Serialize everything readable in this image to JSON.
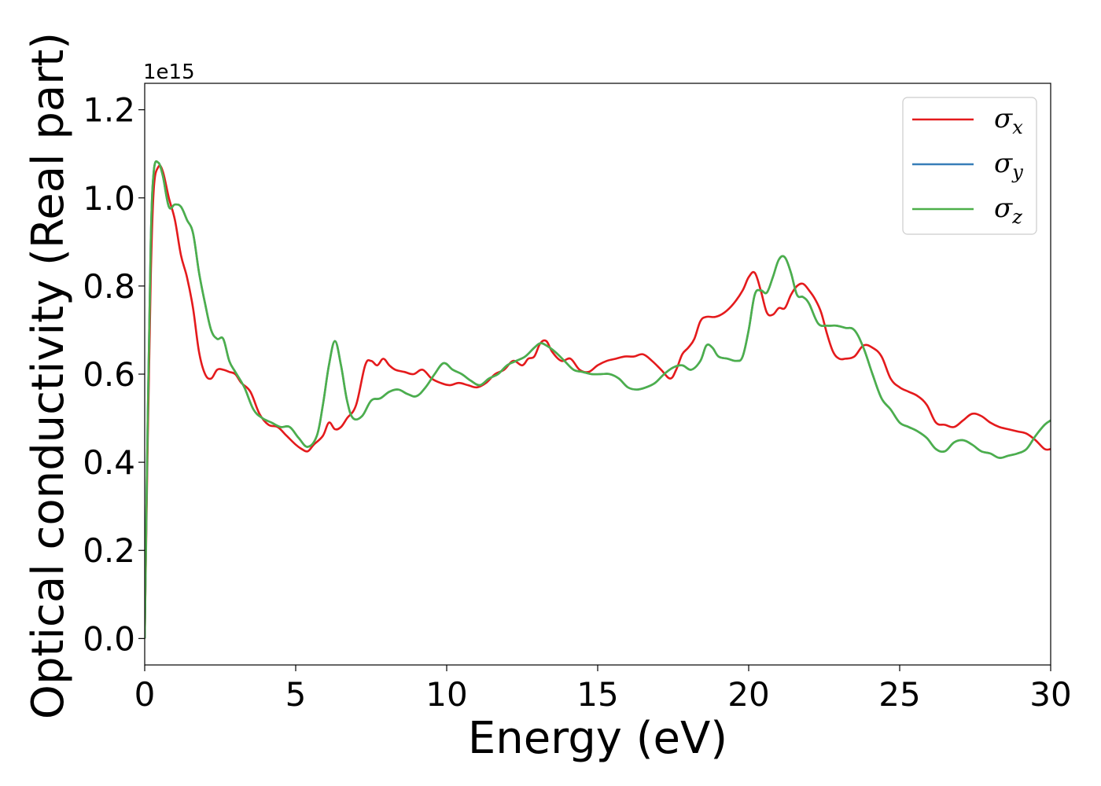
{
  "chart_data": {
    "type": "line",
    "xlabel": "Energy (eV)",
    "ylabel": "Optical conductivity (Real part)",
    "y_offset_label": "1e15",
    "xlim": [
      0,
      30
    ],
    "ylim": [
      -0.06,
      1.26
    ],
    "x_ticks": [
      0,
      5,
      10,
      15,
      20,
      25,
      30
    ],
    "x_tick_labels": [
      "0",
      "5",
      "10",
      "15",
      "20",
      "25",
      "30"
    ],
    "y_ticks": [
      0.0,
      0.2,
      0.4,
      0.6,
      0.8,
      1.0,
      1.2
    ],
    "y_tick_labels": [
      "0.0",
      "0.2",
      "0.4",
      "0.6",
      "0.8",
      "1.0",
      "1.2"
    ],
    "grid": false,
    "legend_position": "top-right",
    "series": [
      {
        "name": "σx",
        "symbol": "σ",
        "subscript": "x",
        "color": "#e41a1c",
        "x": [
          0,
          0.1,
          0.2,
          0.3,
          0.45,
          0.6,
          0.8,
          1.0,
          1.2,
          1.4,
          1.6,
          1.8,
          2.0,
          2.2,
          2.4,
          2.6,
          2.8,
          3.0,
          3.2,
          3.5,
          3.8,
          4.1,
          4.4,
          4.7,
          5.0,
          5.2,
          5.4,
          5.6,
          5.9,
          6.1,
          6.3,
          6.5,
          6.7,
          7.0,
          7.3,
          7.5,
          7.7,
          7.9,
          8.1,
          8.3,
          8.6,
          8.9,
          9.2,
          9.5,
          9.8,
          10.1,
          10.4,
          10.7,
          11.0,
          11.3,
          11.6,
          11.9,
          12.2,
          12.5,
          12.7,
          12.9,
          13.1,
          13.3,
          13.5,
          13.8,
          14.1,
          14.4,
          14.7,
          15.0,
          15.3,
          15.6,
          15.9,
          16.2,
          16.5,
          16.8,
          17.1,
          17.4,
          17.6,
          17.8,
          18.0,
          18.2,
          18.4,
          18.6,
          18.9,
          19.2,
          19.5,
          19.8,
          20.0,
          20.2,
          20.4,
          20.6,
          20.8,
          21.0,
          21.2,
          21.4,
          21.6,
          21.8,
          22.0,
          22.2,
          22.4,
          22.6,
          22.8,
          23.0,
          23.2,
          23.5,
          23.8,
          24.1,
          24.4,
          24.7,
          25.0,
          25.3,
          25.6,
          25.9,
          26.2,
          26.5,
          26.8,
          27.1,
          27.4,
          27.7,
          28.0,
          28.3,
          28.6,
          28.9,
          29.2,
          29.5,
          29.8,
          30.0
        ],
        "values": [
          0.0,
          0.45,
          0.82,
          1.02,
          1.07,
          1.06,
          1.0,
          0.95,
          0.87,
          0.82,
          0.75,
          0.65,
          0.6,
          0.59,
          0.61,
          0.61,
          0.605,
          0.6,
          0.58,
          0.56,
          0.51,
          0.485,
          0.48,
          0.46,
          0.44,
          0.43,
          0.425,
          0.44,
          0.46,
          0.49,
          0.475,
          0.48,
          0.5,
          0.53,
          0.62,
          0.63,
          0.62,
          0.635,
          0.62,
          0.61,
          0.605,
          0.6,
          0.61,
          0.59,
          0.58,
          0.575,
          0.58,
          0.575,
          0.57,
          0.58,
          0.6,
          0.61,
          0.63,
          0.62,
          0.635,
          0.64,
          0.67,
          0.675,
          0.65,
          0.63,
          0.635,
          0.61,
          0.605,
          0.62,
          0.63,
          0.635,
          0.64,
          0.64,
          0.645,
          0.63,
          0.61,
          0.59,
          0.61,
          0.645,
          0.66,
          0.68,
          0.72,
          0.73,
          0.73,
          0.74,
          0.76,
          0.79,
          0.82,
          0.83,
          0.79,
          0.74,
          0.735,
          0.75,
          0.75,
          0.78,
          0.8,
          0.805,
          0.79,
          0.77,
          0.74,
          0.69,
          0.65,
          0.635,
          0.635,
          0.64,
          0.665,
          0.66,
          0.64,
          0.59,
          0.57,
          0.56,
          0.55,
          0.53,
          0.49,
          0.485,
          0.48,
          0.495,
          0.51,
          0.505,
          0.49,
          0.48,
          0.475,
          0.47,
          0.465,
          0.45,
          0.43,
          0.43
        ]
      },
      {
        "name": "σy",
        "symbol": "σ",
        "subscript": "y",
        "color": "#377eb8",
        "x": [
          0,
          0.1,
          0.2,
          0.3,
          0.45,
          0.6,
          0.8,
          1.0,
          1.2,
          1.4,
          1.6,
          1.8,
          2.0,
          2.2,
          2.4,
          2.6,
          2.8,
          3.0,
          3.3,
          3.6,
          3.9,
          4.2,
          4.5,
          4.8,
          5.1,
          5.4,
          5.7,
          5.9,
          6.1,
          6.3,
          6.5,
          6.7,
          6.9,
          7.2,
          7.5,
          7.8,
          8.1,
          8.4,
          8.7,
          9.0,
          9.3,
          9.6,
          9.9,
          10.2,
          10.5,
          10.8,
          11.1,
          11.4,
          11.7,
          12.0,
          12.3,
          12.6,
          12.9,
          13.1,
          13.3,
          13.6,
          13.9,
          14.2,
          14.5,
          14.8,
          15.1,
          15.4,
          15.7,
          16.0,
          16.3,
          16.6,
          16.9,
          17.2,
          17.5,
          17.8,
          18.1,
          18.4,
          18.6,
          18.8,
          19.0,
          19.3,
          19.6,
          19.8,
          20.0,
          20.2,
          20.4,
          20.6,
          20.8,
          21.0,
          21.2,
          21.4,
          21.6,
          21.8,
          22.0,
          22.3,
          22.6,
          22.9,
          23.2,
          23.5,
          23.8,
          24.1,
          24.4,
          24.7,
          25.0,
          25.3,
          25.6,
          25.9,
          26.2,
          26.5,
          26.8,
          27.1,
          27.4,
          27.7,
          28.0,
          28.3,
          28.6,
          28.9,
          29.2,
          29.5,
          29.8,
          30.0
        ],
        "values": [
          0.0,
          0.5,
          0.9,
          1.06,
          1.08,
          1.05,
          0.98,
          0.985,
          0.98,
          0.95,
          0.92,
          0.83,
          0.76,
          0.7,
          0.68,
          0.68,
          0.63,
          0.605,
          0.57,
          0.52,
          0.5,
          0.49,
          0.48,
          0.48,
          0.455,
          0.435,
          0.46,
          0.53,
          0.62,
          0.675,
          0.62,
          0.54,
          0.5,
          0.505,
          0.54,
          0.545,
          0.56,
          0.565,
          0.555,
          0.55,
          0.57,
          0.6,
          0.625,
          0.61,
          0.6,
          0.585,
          0.575,
          0.59,
          0.6,
          0.62,
          0.63,
          0.64,
          0.66,
          0.67,
          0.665,
          0.65,
          0.63,
          0.61,
          0.605,
          0.6,
          0.6,
          0.6,
          0.59,
          0.57,
          0.565,
          0.57,
          0.58,
          0.6,
          0.615,
          0.62,
          0.61,
          0.63,
          0.665,
          0.66,
          0.64,
          0.635,
          0.63,
          0.64,
          0.7,
          0.78,
          0.79,
          0.785,
          0.82,
          0.86,
          0.865,
          0.83,
          0.78,
          0.775,
          0.76,
          0.715,
          0.71,
          0.71,
          0.705,
          0.7,
          0.66,
          0.6,
          0.545,
          0.52,
          0.49,
          0.48,
          0.47,
          0.455,
          0.43,
          0.425,
          0.445,
          0.45,
          0.44,
          0.425,
          0.42,
          0.41,
          0.415,
          0.42,
          0.43,
          0.46,
          0.485,
          0.495
        ]
      },
      {
        "name": "σz",
        "symbol": "σ",
        "subscript": "z",
        "color": "#4daf4a",
        "x": [
          0,
          0.1,
          0.2,
          0.3,
          0.45,
          0.6,
          0.8,
          1.0,
          1.2,
          1.4,
          1.6,
          1.8,
          2.0,
          2.2,
          2.4,
          2.6,
          2.8,
          3.0,
          3.3,
          3.6,
          3.9,
          4.2,
          4.5,
          4.8,
          5.1,
          5.4,
          5.7,
          5.9,
          6.1,
          6.3,
          6.5,
          6.7,
          6.9,
          7.2,
          7.5,
          7.8,
          8.1,
          8.4,
          8.7,
          9.0,
          9.3,
          9.6,
          9.9,
          10.2,
          10.5,
          10.8,
          11.1,
          11.4,
          11.7,
          12.0,
          12.3,
          12.6,
          12.9,
          13.1,
          13.3,
          13.6,
          13.9,
          14.2,
          14.5,
          14.8,
          15.1,
          15.4,
          15.7,
          16.0,
          16.3,
          16.6,
          16.9,
          17.2,
          17.5,
          17.8,
          18.1,
          18.4,
          18.6,
          18.8,
          19.0,
          19.3,
          19.6,
          19.8,
          20.0,
          20.2,
          20.4,
          20.6,
          20.8,
          21.0,
          21.2,
          21.4,
          21.6,
          21.8,
          22.0,
          22.3,
          22.6,
          22.9,
          23.2,
          23.5,
          23.8,
          24.1,
          24.4,
          24.7,
          25.0,
          25.3,
          25.6,
          25.9,
          26.2,
          26.5,
          26.8,
          27.1,
          27.4,
          27.7,
          28.0,
          28.3,
          28.6,
          28.9,
          29.2,
          29.5,
          29.8,
          30.0
        ],
        "values": [
          0.0,
          0.5,
          0.9,
          1.06,
          1.08,
          1.05,
          0.98,
          0.985,
          0.98,
          0.95,
          0.92,
          0.83,
          0.76,
          0.7,
          0.68,
          0.68,
          0.63,
          0.605,
          0.57,
          0.52,
          0.5,
          0.49,
          0.48,
          0.48,
          0.455,
          0.435,
          0.46,
          0.53,
          0.62,
          0.675,
          0.62,
          0.54,
          0.5,
          0.505,
          0.54,
          0.545,
          0.56,
          0.565,
          0.555,
          0.55,
          0.57,
          0.6,
          0.625,
          0.61,
          0.6,
          0.585,
          0.575,
          0.59,
          0.6,
          0.62,
          0.63,
          0.64,
          0.66,
          0.67,
          0.665,
          0.65,
          0.63,
          0.61,
          0.605,
          0.6,
          0.6,
          0.6,
          0.59,
          0.57,
          0.565,
          0.57,
          0.58,
          0.6,
          0.615,
          0.62,
          0.61,
          0.63,
          0.665,
          0.66,
          0.64,
          0.635,
          0.63,
          0.64,
          0.7,
          0.78,
          0.79,
          0.785,
          0.82,
          0.86,
          0.865,
          0.83,
          0.78,
          0.775,
          0.76,
          0.715,
          0.71,
          0.71,
          0.705,
          0.7,
          0.66,
          0.6,
          0.545,
          0.52,
          0.49,
          0.48,
          0.47,
          0.455,
          0.43,
          0.425,
          0.445,
          0.45,
          0.44,
          0.425,
          0.42,
          0.41,
          0.415,
          0.42,
          0.43,
          0.46,
          0.485,
          0.495
        ]
      }
    ]
  }
}
